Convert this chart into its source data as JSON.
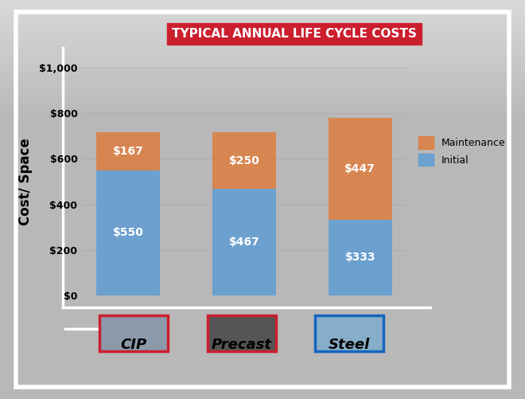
{
  "title": "TYPICAL ANNUAL LIFE CYCLE COSTS",
  "title_bg_color": "#cc1f2e",
  "title_text_color": "#ffffff",
  "categories": [
    "CIP",
    "Precast",
    "Steel"
  ],
  "initial_values": [
    550,
    467,
    333
  ],
  "maintenance_values": [
    167,
    250,
    447
  ],
  "initial_color": "#5b9bd5",
  "maintenance_color": "#e07b3a",
  "initial_label": "Initial",
  "maintenance_label": "Maintenance",
  "ylabel": "Cost/ Space",
  "ylim": [
    0,
    1000
  ],
  "yticks": [
    0,
    200,
    400,
    600,
    800,
    1000
  ],
  "ytick_labels": [
    "$0",
    "$200",
    "$400",
    "$600",
    "$800",
    "$1,000"
  ],
  "background_color": "#b8b8b8",
  "bar_alpha": 0.82,
  "value_label_color": "#ffffff",
  "value_label_fontsize": 10,
  "category_fontsize": 13,
  "ylabel_fontsize": 12,
  "legend_fontsize": 9,
  "grid_color": "#aaaaaa",
  "grid_alpha": 0.7,
  "white_frame_color": "#ffffff",
  "legend_patch_maint": "#e07b3a",
  "legend_patch_init": "#5b9bd5",
  "bar_positions": [
    0,
    1,
    2
  ],
  "bar_width": 0.55
}
